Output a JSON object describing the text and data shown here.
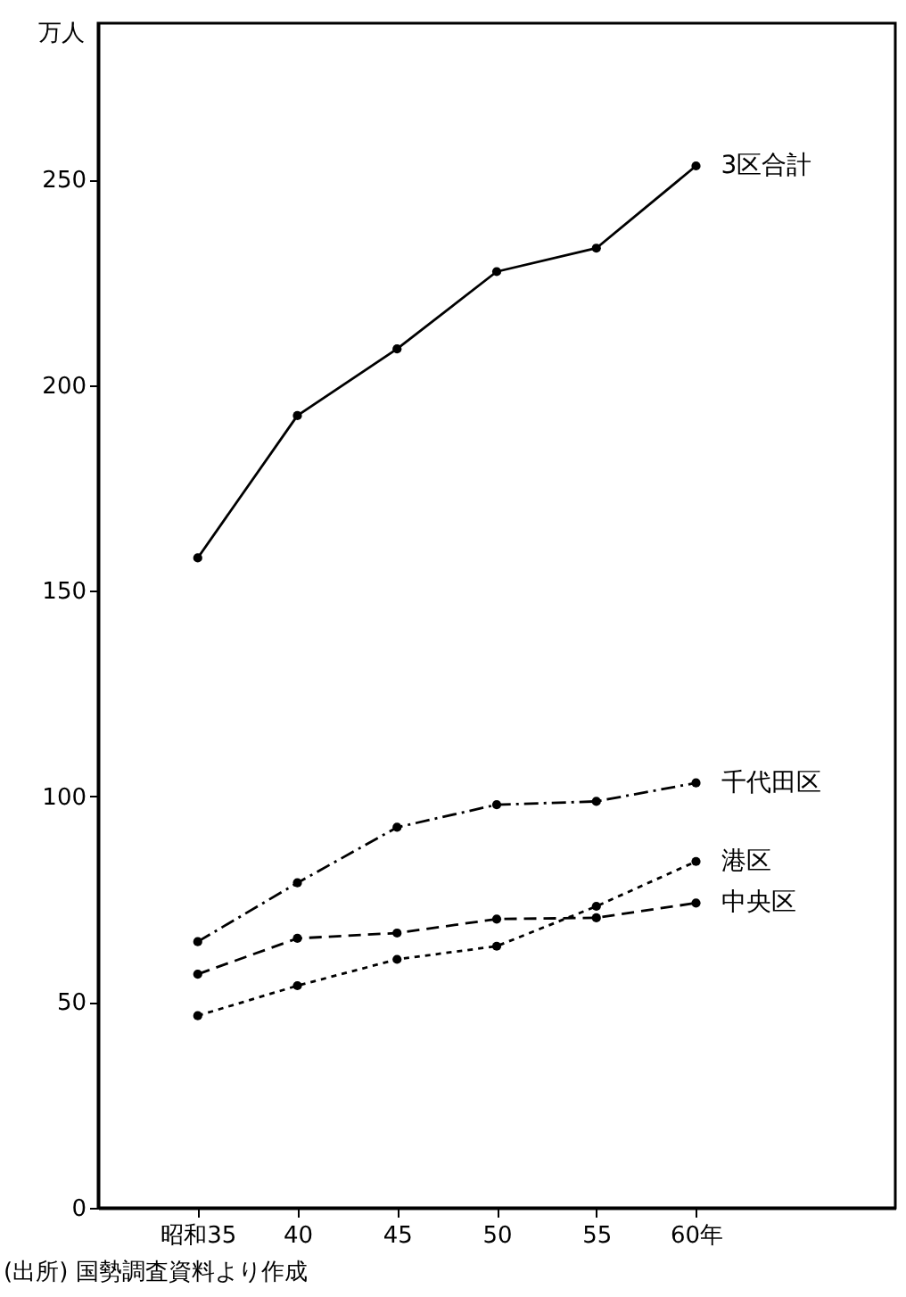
{
  "chart_data": {
    "type": "line",
    "ylabel": "万人",
    "annotations": [
      "(出所) 国勢調査資料より作成"
    ],
    "x": [
      35,
      40,
      45,
      50,
      55,
      60
    ],
    "xlim": [
      30,
      70
    ],
    "xticks": [
      {
        "value": 35,
        "label": "昭和35"
      },
      40,
      45,
      50,
      55,
      {
        "value": 60,
        "label": "60年"
      }
    ],
    "ylim": [
      0,
      288
    ],
    "yticks": [
      0,
      50,
      100,
      150,
      200,
      250
    ],
    "grid": false,
    "marker": "circle",
    "series": [
      {
        "name": "3区合計",
        "color": "#000000",
        "line_style": "solid",
        "values": [
          158,
          192.6,
          208.8,
          227.6,
          233.3,
          253.3
        ]
      },
      {
        "name": "千代田区",
        "color": "#000000",
        "line_style": "dashdot",
        "values": [
          64.7,
          79,
          92.5,
          98,
          98.8,
          103.3
        ]
      },
      {
        "name": "中央区",
        "color": "#000000",
        "line_style": "dashed",
        "values": [
          56.8,
          65.5,
          66.8,
          70.2,
          70.5,
          74.1
        ]
      },
      {
        "name": "港区",
        "color": "#000000",
        "line_style": "dotted",
        "values": [
          46.7,
          54,
          60.4,
          63.6,
          73.3,
          84.2
        ]
      }
    ]
  }
}
